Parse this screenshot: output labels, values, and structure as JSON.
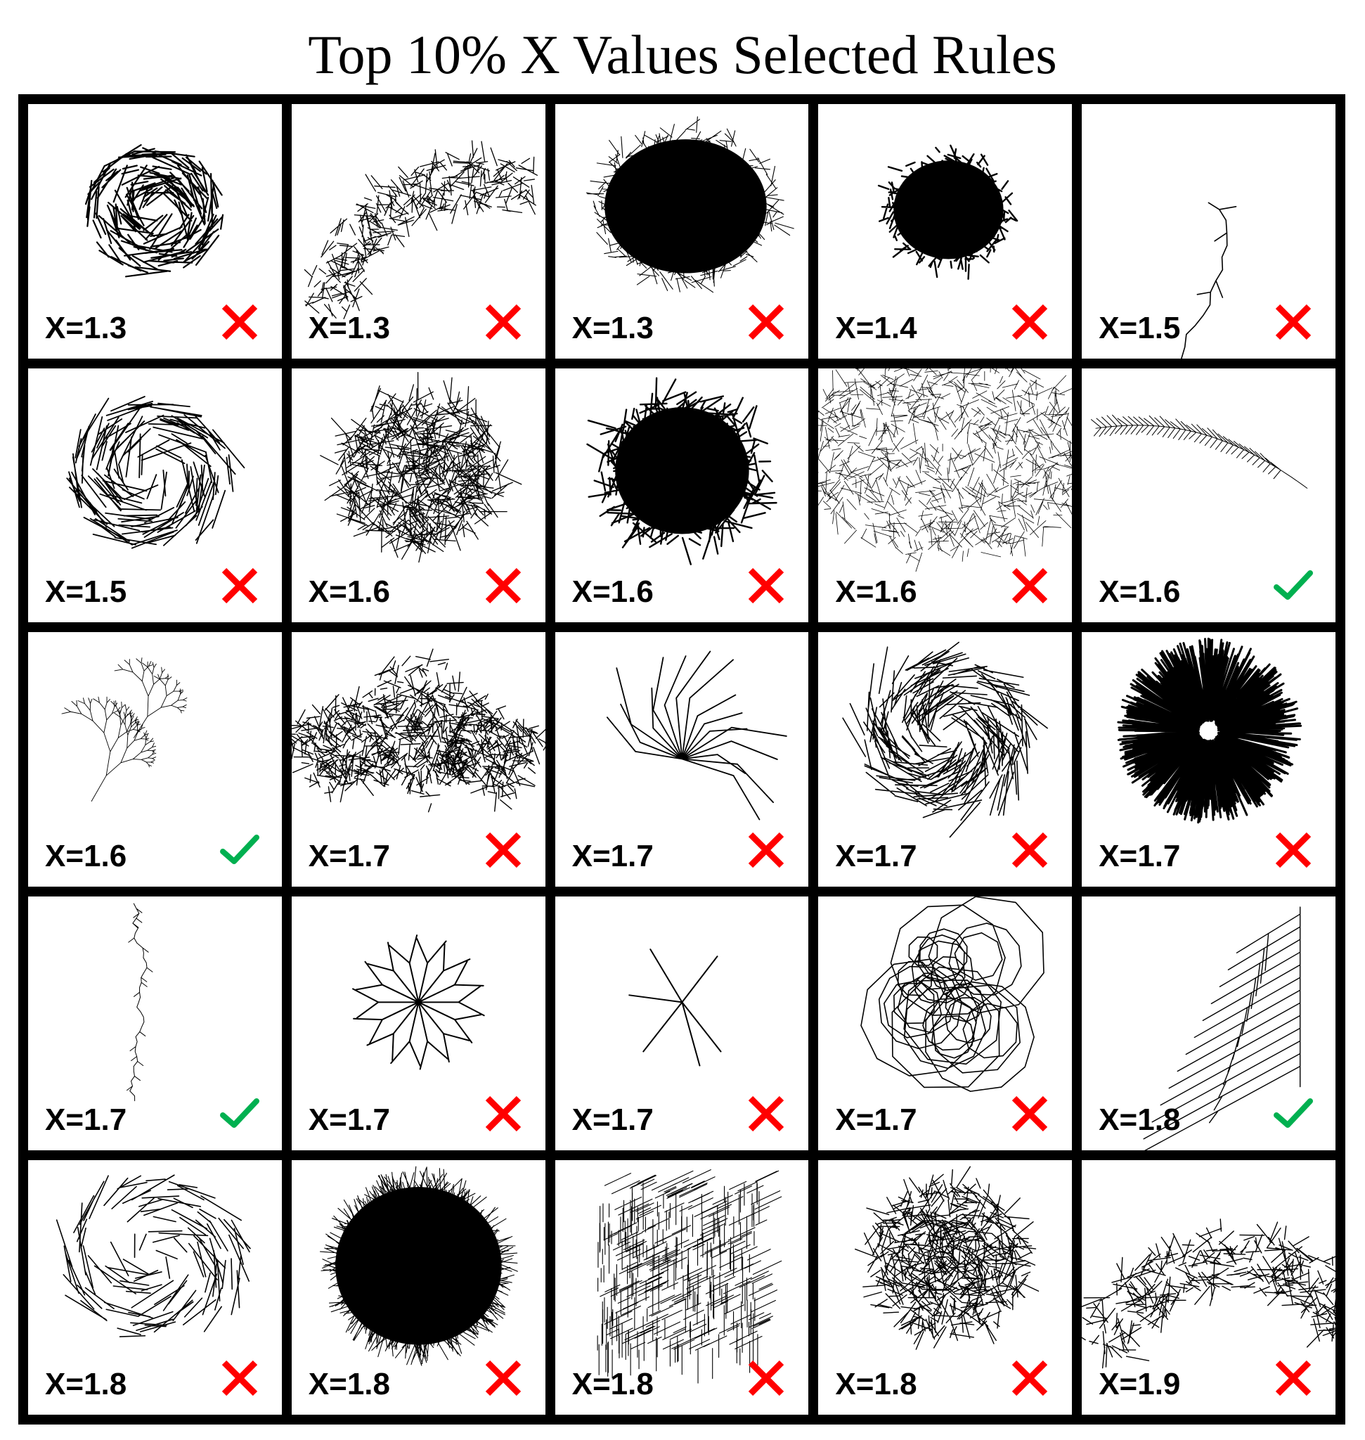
{
  "title": "Top 10% X Values Selected Rules",
  "colors": {
    "cross": "#ff0000",
    "check": "#00b050",
    "ink": "#000000"
  },
  "cells": [
    {
      "label": "X=1.3",
      "mark": "cross-icon",
      "pattern": "swirl-dense"
    },
    {
      "label": "X=1.3",
      "mark": "cross-icon",
      "pattern": "arc-branches"
    },
    {
      "label": "X=1.3",
      "mark": "cross-icon",
      "pattern": "solid-blob"
    },
    {
      "label": "X=1.4",
      "mark": "cross-icon",
      "pattern": "solid-blob-small"
    },
    {
      "label": "X=1.5",
      "mark": "cross-icon",
      "pattern": "tangle-open"
    },
    {
      "label": "X=1.5",
      "mark": "cross-icon",
      "pattern": "swirl-open"
    },
    {
      "label": "X=1.6",
      "mark": "cross-icon",
      "pattern": "tangle-dense"
    },
    {
      "label": "X=1.6",
      "mark": "cross-icon",
      "pattern": "solid-hairy"
    },
    {
      "label": "X=1.6",
      "mark": "cross-icon",
      "pattern": "fine-mesh"
    },
    {
      "label": "X=1.6",
      "mark": "check-icon",
      "pattern": "feather-arc"
    },
    {
      "label": "X=1.6",
      "mark": "check-icon",
      "pattern": "diagonal-fern"
    },
    {
      "label": "X=1.7",
      "mark": "cross-icon",
      "pattern": "arc-mesh"
    },
    {
      "label": "X=1.7",
      "mark": "cross-icon",
      "pattern": "fan-sparse"
    },
    {
      "label": "X=1.7",
      "mark": "cross-icon",
      "pattern": "bush-swirl"
    },
    {
      "label": "X=1.7",
      "mark": "cross-icon",
      "pattern": "radial-dense"
    },
    {
      "label": "X=1.7",
      "mark": "check-icon",
      "pattern": "vertical-crack"
    },
    {
      "label": "X=1.7",
      "mark": "cross-icon",
      "pattern": "star-branches"
    },
    {
      "label": "X=1.7",
      "mark": "cross-icon",
      "pattern": "stick-figure"
    },
    {
      "label": "X=1.7",
      "mark": "cross-icon",
      "pattern": "loop-tangle"
    },
    {
      "label": "X=1.8",
      "mark": "check-icon",
      "pattern": "sweep-fan"
    },
    {
      "label": "X=1.8",
      "mark": "cross-icon",
      "pattern": "swirl-sparse"
    },
    {
      "label": "X=1.8",
      "mark": "cross-icon",
      "pattern": "solid-fur"
    },
    {
      "label": "X=1.8",
      "mark": "cross-icon",
      "pattern": "grid-sticks"
    },
    {
      "label": "X=1.8",
      "mark": "cross-icon",
      "pattern": "tangle-loops"
    },
    {
      "label": "X=1.9",
      "mark": "cross-icon",
      "pattern": "arc-zigzag"
    }
  ]
}
